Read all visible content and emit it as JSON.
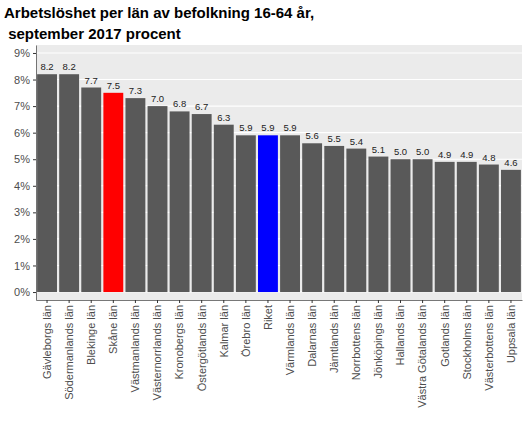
{
  "chart_data": {
    "type": "bar",
    "title": [
      "Arbetslöshet per län av befolkning 16-64 år,",
      " september 2017 procent"
    ],
    "categories": [
      "Gävleborgs län",
      "Södermanlands län",
      "Blekinge län",
      "Skåne län",
      "Västmanlands län",
      "Västernorrlands län",
      "Kronobergs län",
      "Östergötlands län",
      "Kalmar län",
      "Örebro län",
      "Riket",
      "Värmlands län",
      "Dalarnas län",
      "Jämtlands län",
      "Norrbottens län",
      "Jönköpings län",
      "Hallands län",
      "Västra Götalands län",
      "Gotlands län",
      "Stockholms län",
      "Västerbottens län",
      "Uppsala län"
    ],
    "values": [
      8.2,
      8.2,
      7.7,
      7.5,
      7.3,
      7.0,
      6.8,
      6.7,
      6.3,
      5.9,
      5.9,
      5.9,
      5.6,
      5.5,
      5.4,
      5.1,
      5.0,
      5.0,
      4.9,
      4.9,
      4.8,
      4.6
    ],
    "value_labels": [
      "8.2",
      "8.2",
      "7.7",
      "7.5",
      "7.3",
      "7.0",
      "6.8",
      "6.7",
      "6.3",
      "5.9",
      "5.9",
      "5.9",
      "5.6",
      "5.5",
      "5.4",
      "5.1",
      "5.0",
      "5.0",
      "4.9",
      "4.9",
      "4.8",
      "4.6"
    ],
    "colors": [
      "#595959",
      "#595959",
      "#595959",
      "#ff0000",
      "#595959",
      "#595959",
      "#595959",
      "#595959",
      "#595959",
      "#595959",
      "#0000ff",
      "#595959",
      "#595959",
      "#595959",
      "#595959",
      "#595959",
      "#595959",
      "#595959",
      "#595959",
      "#595959",
      "#595959",
      "#595959"
    ],
    "ylim": [
      -0.3,
      9.3
    ],
    "yticks": [
      {
        "value": 0,
        "label": "0%"
      },
      {
        "value": 1,
        "label": "1%"
      },
      {
        "value": 2,
        "label": "2%"
      },
      {
        "value": 3,
        "label": "3%"
      },
      {
        "value": 4,
        "label": "4%"
      },
      {
        "value": 5,
        "label": "5%"
      },
      {
        "value": 6,
        "label": "6%"
      },
      {
        "value": 7,
        "label": "7%"
      },
      {
        "value": 8,
        "label": "8%"
      },
      {
        "value": 9,
        "label": "9%"
      }
    ],
    "grid": true,
    "data_labels": true
  }
}
